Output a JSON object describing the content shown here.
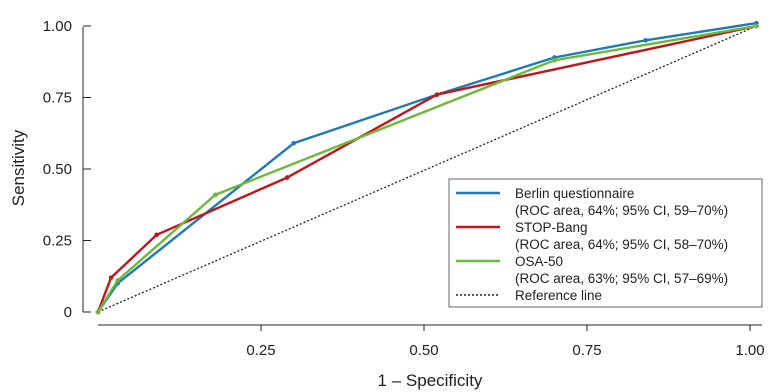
{
  "chart_data": {
    "type": "line",
    "xlabel": "1 – Specificity",
    "ylabel": "Sensitivity",
    "xlim": [
      0,
      1
    ],
    "ylim": [
      0,
      1
    ],
    "x_ticks": [
      0.25,
      0.5,
      0.75,
      1.0
    ],
    "x_tick_labels": [
      "0.25",
      "0.50",
      "0.75",
      "1.00"
    ],
    "y_ticks": [
      0,
      0.25,
      0.5,
      0.75,
      1.0
    ],
    "y_tick_labels": [
      "0",
      "0.25",
      "0.50",
      "0.75",
      "1.00"
    ],
    "grid": false,
    "legend_position": "bottom-right",
    "series": [
      {
        "name": "Berlin questionnaire",
        "detail": "(ROC area, 64%; 95% CI, 59–70%)",
        "color": "#1f7ab5",
        "dash": false,
        "x": [
          0.0,
          0.03,
          0.3,
          0.52,
          0.7,
          0.84,
          1.01
        ],
        "y": [
          0.0,
          0.1,
          0.59,
          0.76,
          0.89,
          0.95,
          1.01
        ]
      },
      {
        "name": "STOP-Bang",
        "detail": "(ROC area, 64%; 95% CI, 58–70%)",
        "color": "#c0161b",
        "dash": false,
        "x": [
          0.0,
          0.02,
          0.09,
          0.29,
          0.52,
          1.01
        ],
        "y": [
          0.0,
          0.12,
          0.27,
          0.47,
          0.76,
          1.0
        ]
      },
      {
        "name": "OSA-50",
        "detail": "(ROC area, 63%; 95% CI, 57–69%)",
        "color": "#6aba3a",
        "dash": false,
        "x": [
          0.0,
          0.03,
          0.18,
          0.7,
          1.01
        ],
        "y": [
          0.0,
          0.11,
          0.41,
          0.88,
          1.0
        ]
      },
      {
        "name": "Reference line",
        "detail": "",
        "color": "#222222",
        "dash": true,
        "x": [
          0.0,
          1.01
        ],
        "y": [
          0.0,
          1.0
        ]
      }
    ]
  }
}
